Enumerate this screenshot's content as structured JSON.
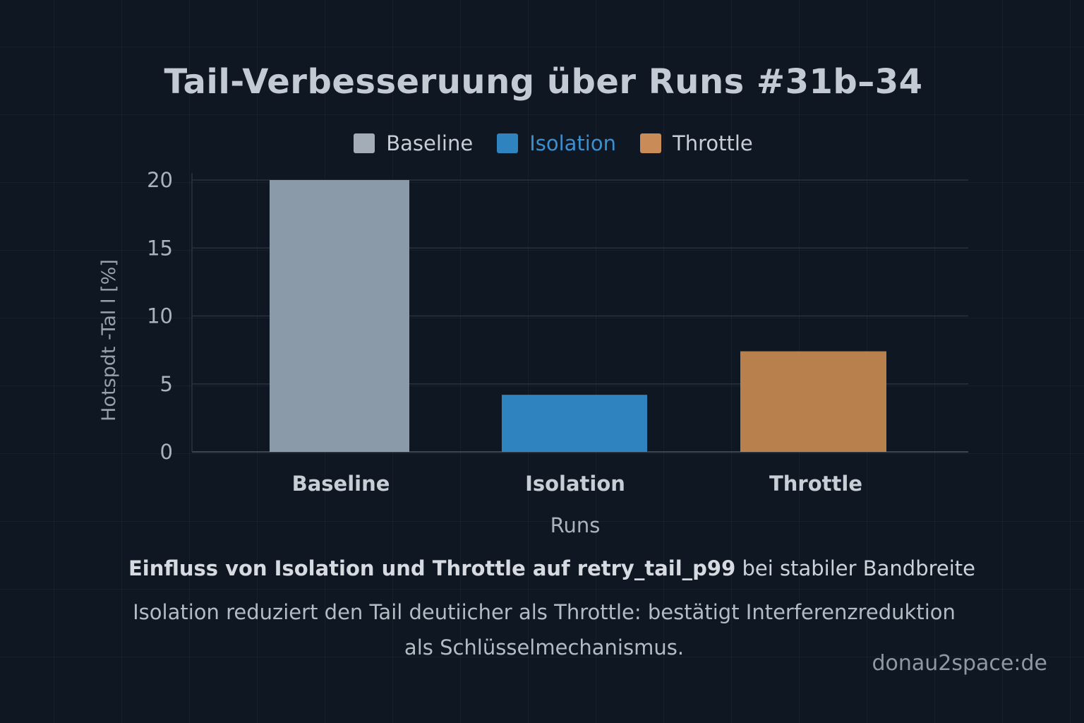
{
  "chart_data": {
    "type": "bar",
    "title": "Tail-Verbesseruung über Runs #31b–34",
    "categories": [
      "Baseline",
      "Isolation",
      "Throttle"
    ],
    "values": [
      20,
      4.2,
      7.4
    ],
    "colors": [
      "#8a9aa8",
      "#2f84bf",
      "#b7804d"
    ],
    "legend": [
      {
        "label": "Baseline",
        "color": "#a3adb7",
        "text_color": "#c7ced6"
      },
      {
        "label": "Isolation",
        "color": "#2f84bf",
        "text_color": "#3a8fd0"
      },
      {
        "label": "Throttle",
        "color": "#c98c58",
        "text_color": "#c7ced6"
      }
    ],
    "legend_position": "top-center",
    "xlabel": "Runs",
    "ylabel": "Hotspdt -Tal l [%]",
    "ylim": [
      0,
      20
    ],
    "yticks": [
      "0",
      "5",
      "10",
      "15",
      "20"
    ],
    "grid": true
  },
  "caption": {
    "line1_bold": "Einfluss von Isolation und Throttle auf retry_tail_p99",
    "line1_rest": " bei stabiler Bandbreite",
    "line2": "Isolation reduziert den Tail deutiicher als Throttle: bestätigt Interferenzreduktion",
    "line3": "als Schlüsselmechanismus."
  },
  "watermark": "donau2space:de"
}
